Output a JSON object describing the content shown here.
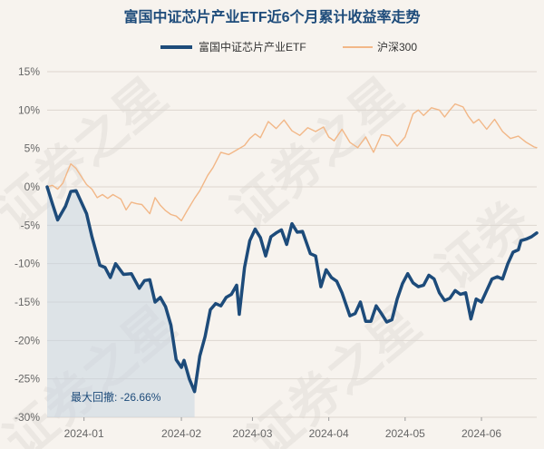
{
  "chart_data": {
    "type": "line",
    "title": "富国中证芯片产业ETF近6个月累计收益率走势",
    "ylim": [
      -30,
      15
    ],
    "yticks": [
      15,
      10,
      5,
      0,
      -5,
      -10,
      -15,
      -20,
      -25,
      -30
    ],
    "ytick_labels": [
      "15%",
      "10%",
      "5%",
      "0%",
      "-5%",
      "-10%",
      "-15%",
      "-20%",
      "-25%",
      "-30%"
    ],
    "xlim": [
      "2023-12-18",
      "2024-06-21"
    ],
    "xtick_labels": [
      "2024-01",
      "2024-02",
      "2024-03",
      "2024-04",
      "2024-05",
      "2024-06"
    ],
    "xtick_dates": [
      "2024-01-01",
      "2024-02-07",
      "2024-03-05",
      "2024-04-03",
      "2024-05-02",
      "2024-05-31"
    ],
    "legend_position": "top",
    "grid": true,
    "annotation": "最大回撤: -26.66%",
    "series": [
      {
        "name": "富国中证芯片产业ETF",
        "color": "#1d4b7a",
        "points": [
          [
            "2023-12-18",
            0
          ],
          [
            "2023-12-20",
            -2.2
          ],
          [
            "2023-12-22",
            -4.3
          ],
          [
            "2023-12-25",
            -2.5
          ],
          [
            "2023-12-27",
            -0.6
          ],
          [
            "2023-12-29",
            -0.5
          ],
          [
            "2024-01-02",
            -3.5
          ],
          [
            "2024-01-04",
            -6.5
          ],
          [
            "2024-01-07",
            -10.2
          ],
          [
            "2024-01-09",
            -10.5
          ],
          [
            "2024-01-11",
            -11.8
          ],
          [
            "2024-01-13",
            -10
          ],
          [
            "2024-01-16",
            -11.4
          ],
          [
            "2024-01-19",
            -11.3
          ],
          [
            "2024-01-22",
            -13.2
          ],
          [
            "2024-01-24",
            -12.2
          ],
          [
            "2024-01-26",
            -12.1
          ],
          [
            "2024-01-28",
            -15
          ],
          [
            "2024-01-30",
            -14.4
          ],
          [
            "2024-02-01",
            -15.6
          ],
          [
            "2024-02-03",
            -18
          ],
          [
            "2024-02-05",
            -22.5
          ],
          [
            "2024-02-07",
            -23.5
          ],
          [
            "2024-02-08",
            -22.6
          ],
          [
            "2024-02-10",
            -25
          ],
          [
            "2024-02-12",
            -26.66
          ],
          [
            "2024-02-14",
            -22
          ],
          [
            "2024-02-16",
            -19.5
          ],
          [
            "2024-02-18",
            -16
          ],
          [
            "2024-02-20",
            -15.2
          ],
          [
            "2024-02-22",
            -15.5
          ],
          [
            "2024-02-24",
            -14.4
          ],
          [
            "2024-02-26",
            -14
          ],
          [
            "2024-02-28",
            -12.8
          ],
          [
            "2024-02-29",
            -16.6
          ],
          [
            "2024-03-02",
            -10.5
          ],
          [
            "2024-03-04",
            -7
          ],
          [
            "2024-03-06",
            -5.5
          ],
          [
            "2024-03-08",
            -6.6
          ],
          [
            "2024-03-10",
            -9
          ],
          [
            "2024-03-12",
            -6.5
          ],
          [
            "2024-03-14",
            -6
          ],
          [
            "2024-03-16",
            -5.6
          ],
          [
            "2024-03-18",
            -7.5
          ],
          [
            "2024-03-20",
            -4.8
          ],
          [
            "2024-03-22",
            -5.9
          ],
          [
            "2024-03-24",
            -5.8
          ],
          [
            "2024-03-27",
            -8.7
          ],
          [
            "2024-03-29",
            -9
          ],
          [
            "2024-03-31",
            -13
          ],
          [
            "2024-04-02",
            -10.8
          ],
          [
            "2024-04-04",
            -11.8
          ],
          [
            "2024-04-06",
            -12.3
          ],
          [
            "2024-04-08",
            -13.8
          ],
          [
            "2024-04-11",
            -16.8
          ],
          [
            "2024-04-13",
            -16.5
          ],
          [
            "2024-04-15",
            -15
          ],
          [
            "2024-04-17",
            -17.5
          ],
          [
            "2024-04-19",
            -17.5
          ],
          [
            "2024-04-21",
            -15.5
          ],
          [
            "2024-04-23",
            -16.5
          ],
          [
            "2024-04-25",
            -17.6
          ],
          [
            "2024-04-27",
            -17.3
          ],
          [
            "2024-04-29",
            -14.6
          ],
          [
            "2024-05-01",
            -12.6
          ],
          [
            "2024-05-03",
            -11.3
          ],
          [
            "2024-05-05",
            -12.5
          ],
          [
            "2024-05-07",
            -13
          ],
          [
            "2024-05-09",
            -12.8
          ],
          [
            "2024-05-11",
            -11.5
          ],
          [
            "2024-05-13",
            -12
          ],
          [
            "2024-05-15",
            -13.8
          ],
          [
            "2024-05-17",
            -14.8
          ],
          [
            "2024-05-19",
            -14.5
          ],
          [
            "2024-05-21",
            -13.5
          ],
          [
            "2024-05-23",
            -14
          ],
          [
            "2024-05-25",
            -13.8
          ],
          [
            "2024-05-27",
            -17.2
          ],
          [
            "2024-05-29",
            -14.6
          ],
          [
            "2024-05-31",
            -15
          ],
          [
            "2024-06-02",
            -13.5
          ],
          [
            "2024-06-04",
            -12
          ],
          [
            "2024-06-06",
            -11.7
          ],
          [
            "2024-06-08",
            -12
          ],
          [
            "2024-06-10",
            -10
          ],
          [
            "2024-06-12",
            -8.5
          ],
          [
            "2024-06-14",
            -8.2
          ],
          [
            "2024-06-15",
            -7
          ],
          [
            "2024-06-17",
            -6.8
          ],
          [
            "2024-06-19",
            -6.5
          ],
          [
            "2024-06-21",
            -6
          ]
        ]
      },
      {
        "name": "沪深300",
        "color": "#f2b787",
        "points": [
          [
            "2023-12-18",
            0
          ],
          [
            "2023-12-20",
            0.2
          ],
          [
            "2023-12-22",
            -0.3
          ],
          [
            "2023-12-24",
            0.5
          ],
          [
            "2023-12-26",
            2.2
          ],
          [
            "2023-12-27",
            3
          ],
          [
            "2023-12-29",
            2.4
          ],
          [
            "2024-01-02",
            0.3
          ],
          [
            "2024-01-04",
            -0.3
          ],
          [
            "2024-01-06",
            -1.4
          ],
          [
            "2024-01-08",
            -1
          ],
          [
            "2024-01-10",
            -1.5
          ],
          [
            "2024-01-12",
            -1
          ],
          [
            "2024-01-15",
            -1.6
          ],
          [
            "2024-01-17",
            -3
          ],
          [
            "2024-01-19",
            -2
          ],
          [
            "2024-01-21",
            -2.2
          ],
          [
            "2024-01-23",
            -2.3
          ],
          [
            "2024-01-26",
            -3.5
          ],
          [
            "2024-01-28",
            -1.4
          ],
          [
            "2024-01-30",
            -2.4
          ],
          [
            "2024-02-01",
            -3.1
          ],
          [
            "2024-02-03",
            -3.6
          ],
          [
            "2024-02-05",
            -3.8
          ],
          [
            "2024-02-07",
            -4.4
          ],
          [
            "2024-02-09",
            -3.2
          ],
          [
            "2024-02-12",
            -1.5
          ],
          [
            "2024-02-14",
            -0.5
          ],
          [
            "2024-02-17",
            1.5
          ],
          [
            "2024-02-19",
            2.5
          ],
          [
            "2024-02-22",
            4.5
          ],
          [
            "2024-02-25",
            4.2
          ],
          [
            "2024-02-28",
            4.8
          ],
          [
            "2024-03-02",
            5.4
          ],
          [
            "2024-03-04",
            6.3
          ],
          [
            "2024-03-06",
            6.9
          ],
          [
            "2024-03-08",
            6.4
          ],
          [
            "2024-03-11",
            8.5
          ],
          [
            "2024-03-14",
            7.6
          ],
          [
            "2024-03-17",
            8.7
          ],
          [
            "2024-03-20",
            7.3
          ],
          [
            "2024-03-23",
            6.7
          ],
          [
            "2024-03-26",
            7.7
          ],
          [
            "2024-03-29",
            7.2
          ],
          [
            "2024-04-01",
            7.8
          ],
          [
            "2024-04-03",
            6.5
          ],
          [
            "2024-04-05",
            6
          ],
          [
            "2024-04-08",
            7.5
          ],
          [
            "2024-04-11",
            5.8
          ],
          [
            "2024-04-14",
            5.1
          ],
          [
            "2024-04-17",
            6.5
          ],
          [
            "2024-04-20",
            4.5
          ],
          [
            "2024-04-23",
            6.8
          ],
          [
            "2024-04-26",
            6.6
          ],
          [
            "2024-04-29",
            5.3
          ],
          [
            "2024-05-02",
            6.5
          ],
          [
            "2024-05-05",
            9.5
          ],
          [
            "2024-05-07",
            10
          ],
          [
            "2024-05-09",
            9.3
          ],
          [
            "2024-05-12",
            10.3
          ],
          [
            "2024-05-15",
            10
          ],
          [
            "2024-05-17",
            9.1
          ],
          [
            "2024-05-19",
            10
          ],
          [
            "2024-05-21",
            10.8
          ],
          [
            "2024-05-24",
            10.4
          ],
          [
            "2024-05-26",
            9.2
          ],
          [
            "2024-05-28",
            8.3
          ],
          [
            "2024-05-30",
            8.8
          ],
          [
            "2024-06-02",
            7.5
          ],
          [
            "2024-06-05",
            8.8
          ],
          [
            "2024-06-08",
            7.2
          ],
          [
            "2024-06-11",
            6.3
          ],
          [
            "2024-06-14",
            6.6
          ],
          [
            "2024-06-17",
            5.8
          ],
          [
            "2024-06-20",
            5.2
          ],
          [
            "2024-06-21",
            5.1
          ]
        ]
      }
    ]
  }
}
